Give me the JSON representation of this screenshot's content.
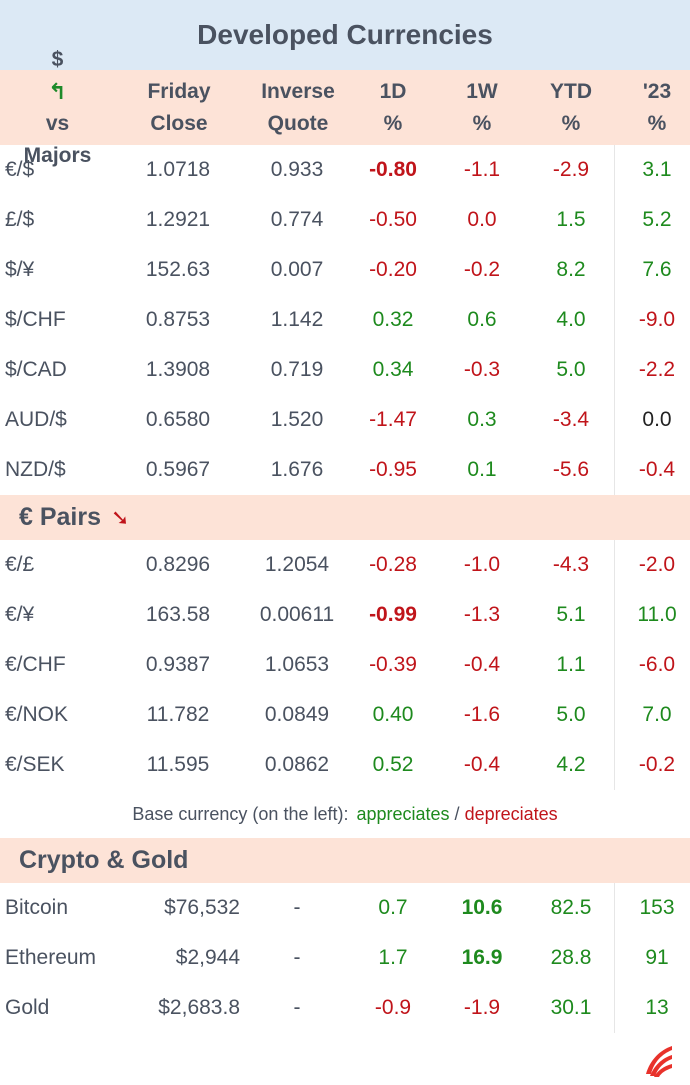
{
  "title": "Developed Currencies",
  "colors": {
    "title_bg": "#dce9f5",
    "header_bg": "#fde3d7",
    "positive": "#1e8a1e",
    "negative": "#c0141a"
  },
  "header": {
    "c1": [
      "$",
      "vs",
      "Majors"
    ],
    "c2": [
      "Friday",
      "Close"
    ],
    "c3": [
      "Inverse",
      "Quote"
    ],
    "c4": [
      "1D",
      "%"
    ],
    "c5": [
      "1W",
      "%"
    ],
    "c6": [
      "YTD",
      "%"
    ],
    "c7": [
      "'23",
      "%"
    ],
    "icon": "arrow-up-left-icon"
  },
  "majors": [
    {
      "pair": "€/$",
      "close": "1.0718",
      "inverse": "0.933",
      "d1": "-0.80",
      "w1": "-1.1",
      "ytd": "-2.9",
      "y23": "3.1"
    },
    {
      "pair": "£/$",
      "close": "1.2921",
      "inverse": "0.774",
      "d1": "-0.50",
      "w1": "0.0",
      "ytd": "1.5",
      "y23": "5.2"
    },
    {
      "pair": "$/¥",
      "close": "152.63",
      "inverse": "0.007",
      "d1": "-0.20",
      "w1": "-0.2",
      "ytd": "8.2",
      "y23": "7.6"
    },
    {
      "pair": "$/CHF",
      "close": "0.8753",
      "inverse": "1.142",
      "d1": "0.32",
      "w1": "0.6",
      "ytd": "4.0",
      "y23": "-9.0"
    },
    {
      "pair": "$/CAD",
      "close": "1.3908",
      "inverse": "0.719",
      "d1": "0.34",
      "w1": "-0.3",
      "ytd": "5.0",
      "y23": "-2.2"
    },
    {
      "pair": "AUD/$",
      "close": "0.6580",
      "inverse": "1.520",
      "d1": "-1.47",
      "w1": "0.3",
      "ytd": "-3.4",
      "y23": "0.0"
    },
    {
      "pair": "NZD/$",
      "close": "0.5967",
      "inverse": "1.676",
      "d1": "-0.95",
      "w1": "0.1",
      "ytd": "-5.6",
      "y23": "-0.4"
    }
  ],
  "euro_section": {
    "label": "€ Pairs",
    "icon": "arrow-down-icon"
  },
  "euro_pairs": [
    {
      "pair": "€/£",
      "close": "0.8296",
      "inverse": "1.2054",
      "d1": "-0.28",
      "w1": "-1.0",
      "ytd": "-4.3",
      "y23": "-2.0"
    },
    {
      "pair": "€/¥",
      "close": "163.58",
      "inverse": "0.00611",
      "d1": "-0.99",
      "w1": "-1.3",
      "ytd": "5.1",
      "y23": "11.0"
    },
    {
      "pair": "€/CHF",
      "close": "0.9387",
      "inverse": "1.0653",
      "d1": "-0.39",
      "w1": "-0.4",
      "ytd": "1.1",
      "y23": "-6.0"
    },
    {
      "pair": "€/NOK",
      "close": "11.782",
      "inverse": "0.0849",
      "d1": "0.40",
      "w1": "-1.6",
      "ytd": "5.0",
      "y23": "7.0"
    },
    {
      "pair": "€/SEK",
      "close": "11.595",
      "inverse": "0.0862",
      "d1": "0.52",
      "w1": "-0.4",
      "ytd": "4.2",
      "y23": "-0.2"
    }
  ],
  "footnote": {
    "prefix": "Base currency (on the left):",
    "appreciates": "appreciates",
    "separator": "/",
    "depreciates": "depreciates"
  },
  "crypto_section": {
    "label": "Crypto & Gold"
  },
  "crypto": [
    {
      "pair": "Bitcoin",
      "close": "$76,532",
      "inverse": "-",
      "d1": "0.7",
      "w1": "10.6",
      "ytd": "82.5",
      "y23": "153"
    },
    {
      "pair": "Ethereum",
      "close": "$2,944",
      "inverse": "-",
      "d1": "1.7",
      "w1": "16.9",
      "ytd": "28.8",
      "y23": "91"
    },
    {
      "pair": "Gold",
      "close": "$2,683.8",
      "inverse": "-",
      "d1": "-0.9",
      "w1": "-1.9",
      "ytd": "30.1",
      "y23": "13"
    }
  ],
  "logo": "brand-logo-icon"
}
